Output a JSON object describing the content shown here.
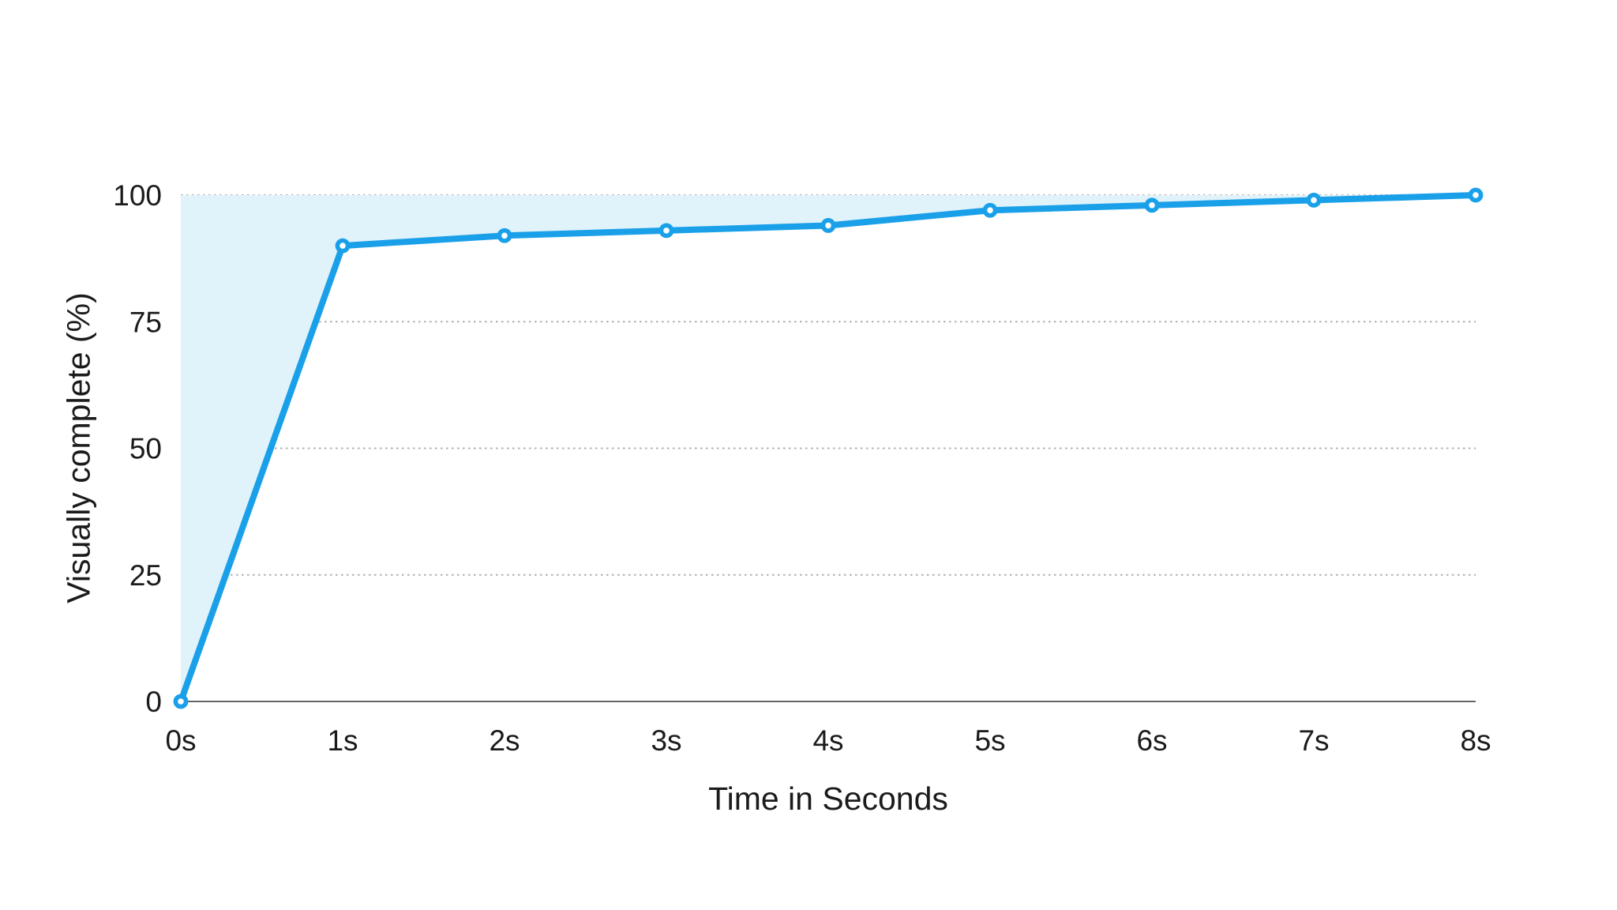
{
  "chart_data": {
    "type": "area",
    "title": "",
    "categories": [
      "0s",
      "1s",
      "2s",
      "3s",
      "4s",
      "5s",
      "6s",
      "7s",
      "8s"
    ],
    "x": [
      0,
      1,
      2,
      3,
      4,
      5,
      6,
      7,
      8
    ],
    "series": [
      {
        "name": "Visually complete",
        "values": [
          0,
          90,
          92,
          93,
          94,
          97,
          98,
          99,
          100
        ]
      }
    ],
    "xlabel": "Time in Seconds",
    "ylabel": "Visually complete (%)",
    "ylim": [
      0,
      100
    ],
    "y_ticks": [
      0,
      25,
      50,
      75,
      100
    ],
    "grid": "horizontal dotted lines at 25/50/75/100, solid baseline at 0",
    "legend_position": "none",
    "fill_region": "area between the line and y=100 (top), tapering to zero at 8s",
    "marker_style": "open circles (white centers with blue ring)",
    "colors": {
      "line": "#1AA0E9",
      "area_fill": "#E1F3FA",
      "marker_fill": "#FFFFFF",
      "gridline": "#AFAFAF",
      "axis_line": "#666666",
      "text": "#1B1B1B",
      "background": "#FFFFFF"
    }
  }
}
